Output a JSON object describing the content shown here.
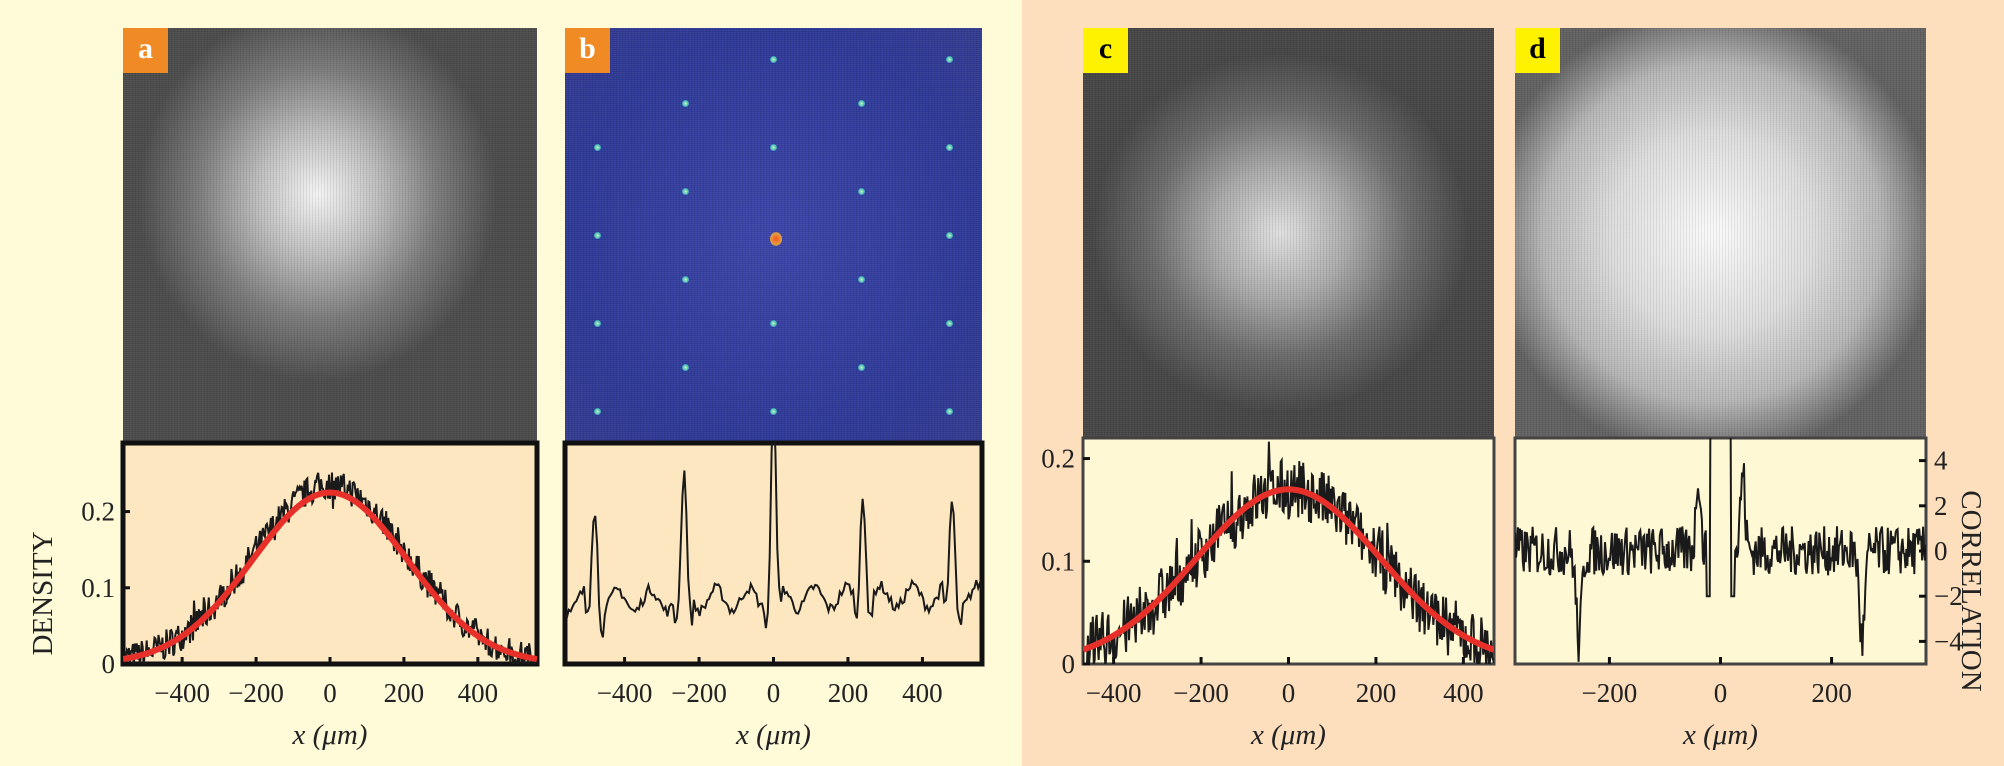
{
  "panels": [
    {
      "label": "a"
    },
    {
      "label": "b"
    },
    {
      "label": "c"
    },
    {
      "label": "d"
    }
  ],
  "colors": {
    "left_bg": "#fffad8",
    "right_bg": "#fddfbe",
    "plot_bg_left": "#fde7c0",
    "plot_bg_right": "#fff8d4",
    "fit": "#e8302a",
    "data": "#1a1a1a",
    "badge_ab": "#f08a24",
    "badge_cd": "#fff200"
  },
  "chart_data": [
    {
      "panel": "a",
      "type": "line",
      "xlabel": "x (μm)",
      "ylabel": "DENSITY",
      "xlim": [
        -560,
        560
      ],
      "ylim": [
        0,
        0.29
      ],
      "xticks": [
        "−400",
        "−200",
        "0",
        "200",
        "400"
      ],
      "xtick_values": [
        -400,
        -200,
        0,
        200,
        400
      ],
      "yticks": [
        "0",
        "0.1",
        "0.2"
      ],
      "ytick_values": [
        0,
        0.1,
        0.2
      ],
      "series": [
        {
          "kind": "noisy data",
          "center": 0,
          "peak": 0.235,
          "sigma": 210,
          "noise": 0.02
        },
        {
          "kind": "gaussian fit",
          "center": 0,
          "peak": 0.225,
          "sigma": 210,
          "offset": 0.0
        }
      ]
    },
    {
      "panel": "b",
      "type": "line",
      "xlabel": "x (μm)",
      "xlim": [
        -560,
        560
      ],
      "xticks": [
        "−400",
        "−200",
        "0",
        "200",
        "400"
      ],
      "xtick_values": [
        -400,
        -200,
        0,
        200,
        400
      ],
      "series": [
        {
          "kind": "correlation",
          "peaks_x": [
            -480,
            -240,
            0,
            240,
            480
          ],
          "peak_heights": [
            0.7,
            0.85,
            1.4,
            0.82,
            0.65
          ]
        }
      ]
    },
    {
      "panel": "c",
      "type": "line",
      "xlabel": "x (μm)",
      "xlim": [
        -470,
        470
      ],
      "ylim": [
        0,
        0.22
      ],
      "xticks": [
        "−400",
        "−200",
        "0",
        "200",
        "400"
      ],
      "xtick_values": [
        -400,
        -200,
        0,
        200,
        400
      ],
      "yticks": [
        "0",
        "0.1",
        "0.2"
      ],
      "ytick_values": [
        0,
        0.1,
        0.2
      ],
      "series": [
        {
          "kind": "noisy data",
          "center": 0,
          "peak": 0.17,
          "sigma": 210,
          "noise": 0.03
        },
        {
          "kind": "gaussian fit",
          "center": 0,
          "peak": 0.17,
          "sigma": 210,
          "offset": 0.0
        }
      ]
    },
    {
      "panel": "d",
      "type": "line",
      "xlabel": "x (μm)",
      "ylabel": "CORRELATION",
      "xlim": [
        -370,
        370
      ],
      "ylim": [
        -5,
        5
      ],
      "xticks": [
        "−200",
        "0",
        "200"
      ],
      "xtick_values": [
        -200,
        0,
        200
      ],
      "yticks": [
        "4",
        "2",
        "0",
        "−2",
        "−4"
      ],
      "ytick_values": [
        4,
        2,
        0,
        -2,
        -4
      ],
      "series": [
        {
          "kind": "correlation",
          "dips_x": [
            -255,
            255
          ],
          "dip_value": -4,
          "central_peaks_x": [
            -40,
            40
          ],
          "central_peak_value": 3.5
        }
      ]
    }
  ]
}
